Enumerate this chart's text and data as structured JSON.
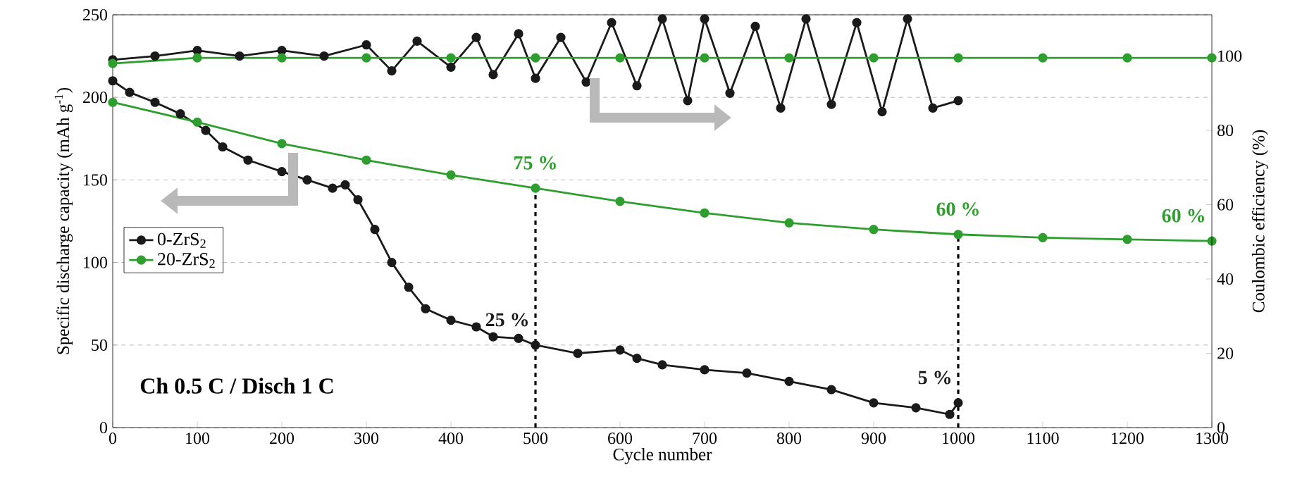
{
  "chart_data": {
    "type": "line",
    "xlabel": "Cycle number",
    "ylabel": "Specific discharge capacity (mAh g$^{-1}$)",
    "y2label": "Coulombic efficiency (%)",
    "xlim": [
      0,
      1300
    ],
    "xticks": [
      0,
      100,
      200,
      300,
      400,
      500,
      600,
      700,
      800,
      900,
      1000,
      1100,
      1200,
      1300
    ],
    "ylim": [
      0,
      250
    ],
    "yticks": [
      0,
      50,
      100,
      150,
      200,
      250
    ],
    "y2lim": [
      0,
      111.1
    ],
    "y2ticks": [
      0,
      20,
      40,
      60,
      80,
      100
    ],
    "grid": "y",
    "legend": "left",
    "marker": "circle",
    "line_style": "solid",
    "series": [
      {
        "name": "0-ZrS$_{2}$",
        "color": "#1a1a1a",
        "x": [
          0,
          20,
          50,
          80,
          110,
          130,
          160,
          200,
          230,
          260,
          275,
          290,
          310,
          330,
          350,
          370,
          400,
          430,
          450,
          480,
          500,
          550,
          600,
          620,
          650,
          700,
          750,
          800,
          850,
          900,
          950,
          990,
          1000
        ],
        "values": [
          210,
          203,
          197,
          190,
          180,
          170,
          162,
          155,
          150,
          145,
          147,
          138,
          120,
          100,
          85,
          72,
          65,
          61,
          55,
          54,
          50,
          45,
          47,
          42,
          38,
          35,
          33,
          28,
          23,
          15,
          12,
          8,
          15
        ]
      },
      {
        "name": "20-ZrS$_{2}$",
        "color": "#2e9e2e",
        "x": [
          0,
          100,
          200,
          300,
          400,
          500,
          600,
          700,
          800,
          900,
          1000,
          1100,
          1200,
          1300
        ],
        "values": [
          197,
          185,
          172,
          162,
          153,
          145,
          137,
          130,
          124,
          120,
          117,
          115,
          114,
          113
        ]
      },
      {
        "color": "#1a1a1a",
        "axis": "y2",
        "x": [
          0,
          50,
          100,
          150,
          200,
          250,
          300,
          330,
          360,
          400,
          430,
          450,
          480,
          500,
          530,
          560,
          590,
          620,
          650,
          680,
          700,
          730,
          760,
          790,
          820,
          850,
          880,
          910,
          940,
          970,
          1000
        ],
        "values": [
          99,
          100,
          101.5,
          100,
          101.5,
          100,
          103,
          96,
          104,
          97,
          105,
          95,
          106,
          94,
          105,
          93,
          109,
          92,
          110,
          88,
          110,
          90,
          108,
          86,
          110,
          87,
          109,
          85,
          110,
          86,
          88
        ]
      },
      {
        "color": "#2e9e2e",
        "axis": "y2",
        "x": [
          0,
          100,
          200,
          300,
          400,
          500,
          600,
          700,
          800,
          900,
          1000,
          1100,
          1200,
          1300
        ],
        "values": [
          98,
          99.5,
          99.5,
          99.5,
          99.5,
          99.5,
          99.5,
          99.5,
          99.5,
          99.5,
          99.5,
          99.5,
          99.5,
          99.5
        ]
      }
    ],
    "ref_lines": [
      {
        "axis": "x",
        "value": 500,
        "color": "#000000",
        "line_style": "dashed"
      },
      {
        "axis": "x",
        "value": 1000,
        "color": "#000000",
        "line_style": "dashed"
      }
    ],
    "annotations": [
      "Ch 0.5 C / Disch 1 C",
      {
        "text": "75 %",
        "x": 500,
        "y": 145
      },
      {
        "text": "60 %",
        "x": 1000,
        "y": 117
      },
      {
        "text": "60 %",
        "x": 1300,
        "y": 113
      },
      {
        "text": "25 %",
        "x": 500,
        "y": 50
      },
      {
        "text": "5 %",
        "x": 1000,
        "y": 15
      }
    ]
  }
}
